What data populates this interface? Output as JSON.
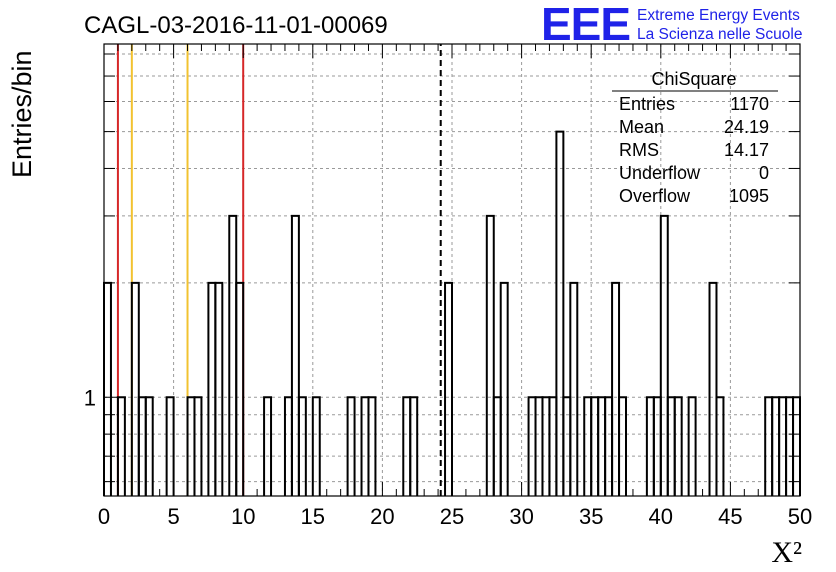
{
  "chart_data": {
    "type": "histogram",
    "title": "CAGL-03-2016-11-01-00069",
    "xlabel": "X²",
    "ylabel": "Entries/bin",
    "xlim": [
      0,
      50
    ],
    "ylim": [
      0.55,
      8.5
    ],
    "log_y": true,
    "grid": true,
    "x_ticks": [
      "0",
      "5",
      "10",
      "15",
      "20",
      "25",
      "30",
      "35",
      "40",
      "45",
      "50"
    ],
    "y_ticks": [
      "1"
    ],
    "bin_width": 0.5,
    "bins": [
      {
        "x": 0.0,
        "y": 2
      },
      {
        "x": 1.0,
        "y": 1
      },
      {
        "x": 2.0,
        "y": 2
      },
      {
        "x": 2.5,
        "y": 1
      },
      {
        "x": 3.0,
        "y": 1
      },
      {
        "x": 4.5,
        "y": 1
      },
      {
        "x": 6.0,
        "y": 1
      },
      {
        "x": 6.5,
        "y": 1
      },
      {
        "x": 7.5,
        "y": 2
      },
      {
        "x": 8.0,
        "y": 2
      },
      {
        "x": 9.0,
        "y": 3
      },
      {
        "x": 9.5,
        "y": 2
      },
      {
        "x": 11.5,
        "y": 1
      },
      {
        "x": 13.0,
        "y": 1
      },
      {
        "x": 13.5,
        "y": 3
      },
      {
        "x": 14.0,
        "y": 1
      },
      {
        "x": 15.0,
        "y": 1
      },
      {
        "x": 17.5,
        "y": 1
      },
      {
        "x": 18.5,
        "y": 1
      },
      {
        "x": 19.0,
        "y": 1
      },
      {
        "x": 21.5,
        "y": 1
      },
      {
        "x": 22.0,
        "y": 1
      },
      {
        "x": 24.5,
        "y": 2
      },
      {
        "x": 27.5,
        "y": 3
      },
      {
        "x": 28.0,
        "y": 1
      },
      {
        "x": 28.5,
        "y": 2
      },
      {
        "x": 30.5,
        "y": 1
      },
      {
        "x": 31.0,
        "y": 1
      },
      {
        "x": 31.5,
        "y": 1
      },
      {
        "x": 32.0,
        "y": 1
      },
      {
        "x": 32.5,
        "y": 5
      },
      {
        "x": 33.0,
        "y": 1
      },
      {
        "x": 33.5,
        "y": 2
      },
      {
        "x": 34.5,
        "y": 1
      },
      {
        "x": 35.0,
        "y": 1
      },
      {
        "x": 35.5,
        "y": 1
      },
      {
        "x": 36.0,
        "y": 1
      },
      {
        "x": 36.5,
        "y": 2
      },
      {
        "x": 37.0,
        "y": 1
      },
      {
        "x": 39.0,
        "y": 1
      },
      {
        "x": 39.5,
        "y": 1
      },
      {
        "x": 40.0,
        "y": 3
      },
      {
        "x": 40.5,
        "y": 1
      },
      {
        "x": 41.0,
        "y": 1
      },
      {
        "x": 42.0,
        "y": 1
      },
      {
        "x": 43.5,
        "y": 2
      },
      {
        "x": 44.0,
        "y": 1
      },
      {
        "x": 47.5,
        "y": 1
      },
      {
        "x": 48.0,
        "y": 1
      },
      {
        "x": 48.5,
        "y": 1
      },
      {
        "x": 49.0,
        "y": 1
      },
      {
        "x": 49.5,
        "y": 1
      }
    ],
    "reference_lines": [
      {
        "x": 1.0,
        "color": "#d62728",
        "style": "solid"
      },
      {
        "x": 2.0,
        "color": "#f2c230",
        "style": "solid"
      },
      {
        "x": 6.0,
        "color": "#f2c230",
        "style": "solid"
      },
      {
        "x": 10.0,
        "color": "#d62728",
        "style": "solid"
      },
      {
        "x": 24.19,
        "color": "#000000",
        "style": "dashed"
      }
    ],
    "stats_box": {
      "title": "ChiSquare",
      "rows": [
        {
          "label": "Entries",
          "value": "1170"
        },
        {
          "label": "Mean",
          "value": "24.19"
        },
        {
          "label": "RMS",
          "value": "14.17"
        },
        {
          "label": "Underflow",
          "value": "0"
        },
        {
          "label": "Overflow",
          "value": "1095"
        }
      ]
    }
  },
  "logo": {
    "mark": "EEE",
    "line1": "Extreme Energy Events",
    "line2": "La Scienza nelle Scuole"
  }
}
